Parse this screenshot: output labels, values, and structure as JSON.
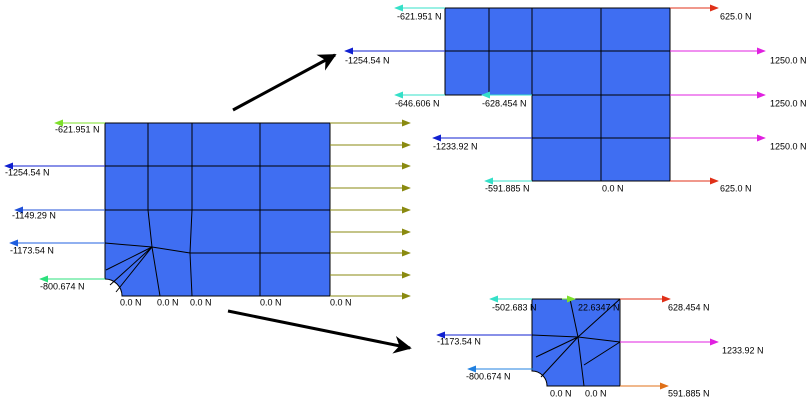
{
  "meshes": [
    {
      "labels": [
        "-621.951 N",
        "-1254.54 N",
        "-1149.29 N",
        "-1173.54 N",
        "-800.674 N",
        "0.0 N",
        "0.0 N",
        "0.0 N",
        "0.0 N",
        "0.0 N"
      ]
    },
    {
      "labels": [
        "-621.951 N",
        "-1254.54 N",
        "-646.606 N",
        "-628.454 N",
        "-1233.92 N",
        "-591.885 N",
        "0.0 N",
        "625.0 N",
        "1250.0 N",
        "1250.0 N",
        "1250.0 N",
        "625.0 N"
      ]
    },
    {
      "labels": [
        "-502.683 N",
        "22.6347 N",
        "628.454 N",
        "-1173.54 N",
        "1233.92 N",
        "-800.674 N",
        "591.885 N",
        "0.0 N",
        "0.0 N"
      ]
    }
  ]
}
